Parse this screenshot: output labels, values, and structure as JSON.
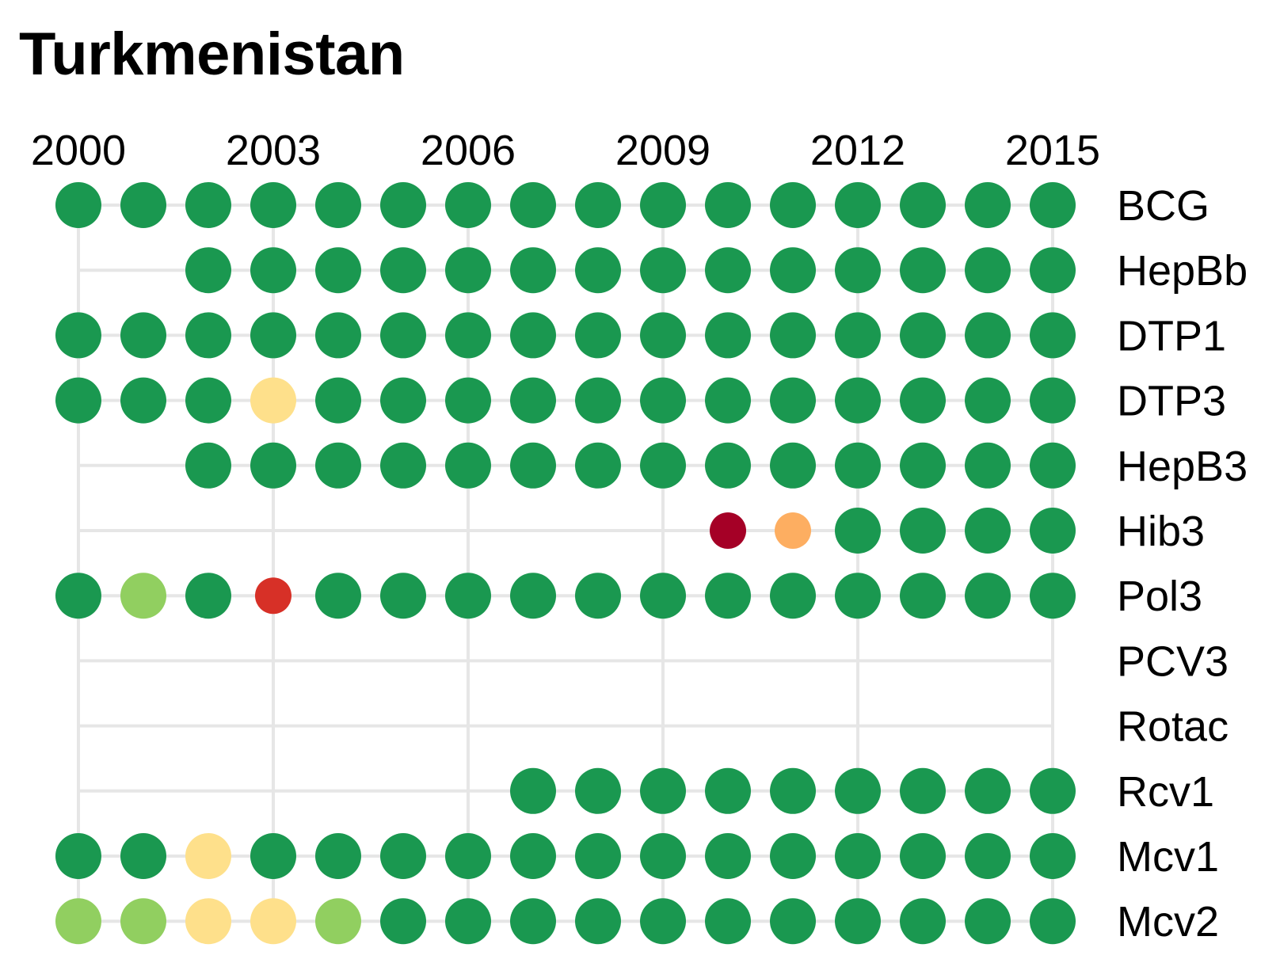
{
  "chart_data": {
    "type": "dot-matrix",
    "title": "Turkmenistan",
    "x_ticks": [
      2000,
      2003,
      2006,
      2009,
      2012,
      2015
    ],
    "years": [
      2000,
      2001,
      2002,
      2003,
      2004,
      2005,
      2006,
      2007,
      2008,
      2009,
      2010,
      2011,
      2012,
      2013,
      2014,
      2015
    ],
    "xlim": [
      2000,
      2015
    ],
    "grid": true,
    "legend": "none",
    "colors": {
      "dark_green": "#1a9850",
      "light_green": "#91cf60",
      "pale_yellow": "#fee08b",
      "orange": "#fdae61",
      "red": "#d73027",
      "dark_red": "#a50026",
      "grid": "#e6e6e6"
    },
    "rows": [
      {
        "name": "BCG",
        "values": [
          "dark_green",
          "dark_green",
          "dark_green",
          "dark_green",
          "dark_green",
          "dark_green",
          "dark_green",
          "dark_green",
          "dark_green",
          "dark_green",
          "dark_green",
          "dark_green",
          "dark_green",
          "dark_green",
          "dark_green",
          "dark_green"
        ]
      },
      {
        "name": "HepBb",
        "values": [
          null,
          null,
          "dark_green",
          "dark_green",
          "dark_green",
          "dark_green",
          "dark_green",
          "dark_green",
          "dark_green",
          "dark_green",
          "dark_green",
          "dark_green",
          "dark_green",
          "dark_green",
          "dark_green",
          "dark_green"
        ]
      },
      {
        "name": "DTP1",
        "values": [
          "dark_green",
          "dark_green",
          "dark_green",
          "dark_green",
          "dark_green",
          "dark_green",
          "dark_green",
          "dark_green",
          "dark_green",
          "dark_green",
          "dark_green",
          "dark_green",
          "dark_green",
          "dark_green",
          "dark_green",
          "dark_green"
        ]
      },
      {
        "name": "DTP3",
        "values": [
          "dark_green",
          "dark_green",
          "dark_green",
          "pale_yellow",
          "dark_green",
          "dark_green",
          "dark_green",
          "dark_green",
          "dark_green",
          "dark_green",
          "dark_green",
          "dark_green",
          "dark_green",
          "dark_green",
          "dark_green",
          "dark_green"
        ]
      },
      {
        "name": "HepB3",
        "values": [
          null,
          null,
          "dark_green",
          "dark_green",
          "dark_green",
          "dark_green",
          "dark_green",
          "dark_green",
          "dark_green",
          "dark_green",
          "dark_green",
          "dark_green",
          "dark_green",
          "dark_green",
          "dark_green",
          "dark_green"
        ]
      },
      {
        "name": "Hib3",
        "values": [
          null,
          null,
          null,
          null,
          null,
          null,
          null,
          null,
          null,
          null,
          "dark_red",
          "orange",
          "dark_green",
          "dark_green",
          "dark_green",
          "dark_green"
        ]
      },
      {
        "name": "Pol3",
        "values": [
          "dark_green",
          "light_green",
          "dark_green",
          "red",
          "dark_green",
          "dark_green",
          "dark_green",
          "dark_green",
          "dark_green",
          "dark_green",
          "dark_green",
          "dark_green",
          "dark_green",
          "dark_green",
          "dark_green",
          "dark_green"
        ]
      },
      {
        "name": "PCV3",
        "values": [
          null,
          null,
          null,
          null,
          null,
          null,
          null,
          null,
          null,
          null,
          null,
          null,
          null,
          null,
          null,
          null
        ]
      },
      {
        "name": "Rotac",
        "values": [
          null,
          null,
          null,
          null,
          null,
          null,
          null,
          null,
          null,
          null,
          null,
          null,
          null,
          null,
          null,
          null
        ]
      },
      {
        "name": "Rcv1",
        "values": [
          null,
          null,
          null,
          null,
          null,
          null,
          null,
          "dark_green",
          "dark_green",
          "dark_green",
          "dark_green",
          "dark_green",
          "dark_green",
          "dark_green",
          "dark_green",
          "dark_green"
        ]
      },
      {
        "name": "Mcv1",
        "values": [
          "dark_green",
          "dark_green",
          "pale_yellow",
          "dark_green",
          "dark_green",
          "dark_green",
          "dark_green",
          "dark_green",
          "dark_green",
          "dark_green",
          "dark_green",
          "dark_green",
          "dark_green",
          "dark_green",
          "dark_green",
          "dark_green"
        ]
      },
      {
        "name": "Mcv2",
        "values": [
          "light_green",
          "light_green",
          "pale_yellow",
          "pale_yellow",
          "light_green",
          "dark_green",
          "dark_green",
          "dark_green",
          "dark_green",
          "dark_green",
          "dark_green",
          "dark_green",
          "dark_green",
          "dark_green",
          "dark_green",
          "dark_green"
        ]
      }
    ]
  }
}
